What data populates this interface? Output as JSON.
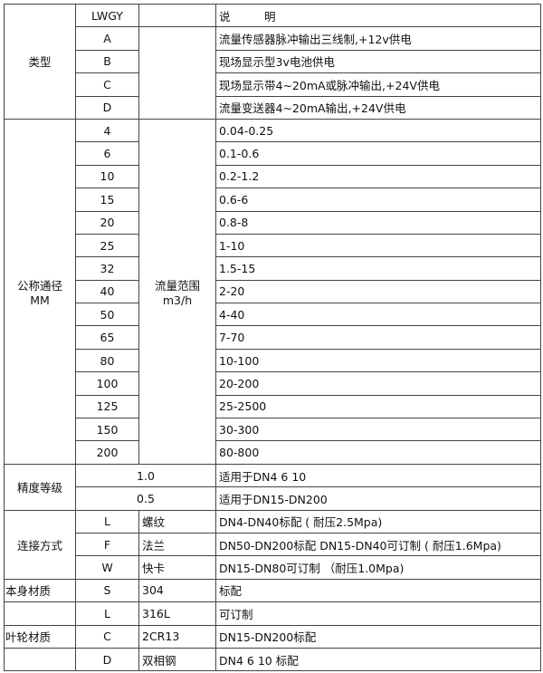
{
  "header": {
    "model": "LWGY",
    "description": "说　　　明"
  },
  "type": {
    "label": "类型",
    "rows": [
      {
        "code": "A",
        "desc": "流量传感器脉冲输出三线制,+12v供电"
      },
      {
        "code": "B",
        "desc": "现场显示型3v电池供电"
      },
      {
        "code": "C",
        "desc": "现场显示带4~20mA或脉冲输出,+24V供电"
      },
      {
        "code": "D",
        "desc": "流量变送器4~20mA输出,+24V供电"
      }
    ]
  },
  "diameter": {
    "label": "公称通径",
    "unit": "MM",
    "flow_label": "流量范围",
    "flow_unit": "m3/h",
    "rows": [
      {
        "dn": "4",
        "range": "0.04-0.25"
      },
      {
        "dn": "6",
        "range": "0.1-0.6"
      },
      {
        "dn": "10",
        "range": "0.2-1.2"
      },
      {
        "dn": "15",
        "range": "0.6-6"
      },
      {
        "dn": "20",
        "range": "0.8-8"
      },
      {
        "dn": "25",
        "range": "1-10"
      },
      {
        "dn": "32",
        "range": "1.5-15"
      },
      {
        "dn": "40",
        "range": "2-20"
      },
      {
        "dn": "50",
        "range": "4-40"
      },
      {
        "dn": "65",
        "range": "7-70"
      },
      {
        "dn": "80",
        "range": "10-100"
      },
      {
        "dn": "100",
        "range": "20-200"
      },
      {
        "dn": "125",
        "range": "25-2500"
      },
      {
        "dn": "150",
        "range": "30-300"
      },
      {
        "dn": "200",
        "range": "80-800"
      }
    ]
  },
  "accuracy": {
    "label": "精度等级",
    "rows": [
      {
        "grade": "1.0",
        "desc": "适用于DN4  6  10"
      },
      {
        "grade": "0.5",
        "desc": "适用于DN15-DN200"
      }
    ]
  },
  "connection": {
    "label": "连接方式",
    "rows": [
      {
        "code": "L",
        "name": "螺纹",
        "desc": "DN4-DN40标配 ( 耐压2.5Mpa)"
      },
      {
        "code": "F",
        "name": "法兰",
        "desc": "DN50-DN200标配 DN15-DN40可订制 ( 耐压1.6Mpa)"
      },
      {
        "code": "W",
        "name": "快卡",
        "desc": "DN15-DN80可订制 （耐压1.0Mpa)"
      }
    ]
  },
  "materials": [
    {
      "label": "本身材质",
      "code": "S",
      "name": "304",
      "desc": "标配"
    },
    {
      "label": "",
      "code": "L",
      "name": "316L",
      "desc": "可订制"
    },
    {
      "label": "叶轮材质",
      "code": "C",
      "name": "2CR13",
      "desc": "DN15-DN200标配"
    },
    {
      "label": "",
      "code": "D",
      "name": "双相钢",
      "desc": "DN4 6 10 标配"
    }
  ]
}
